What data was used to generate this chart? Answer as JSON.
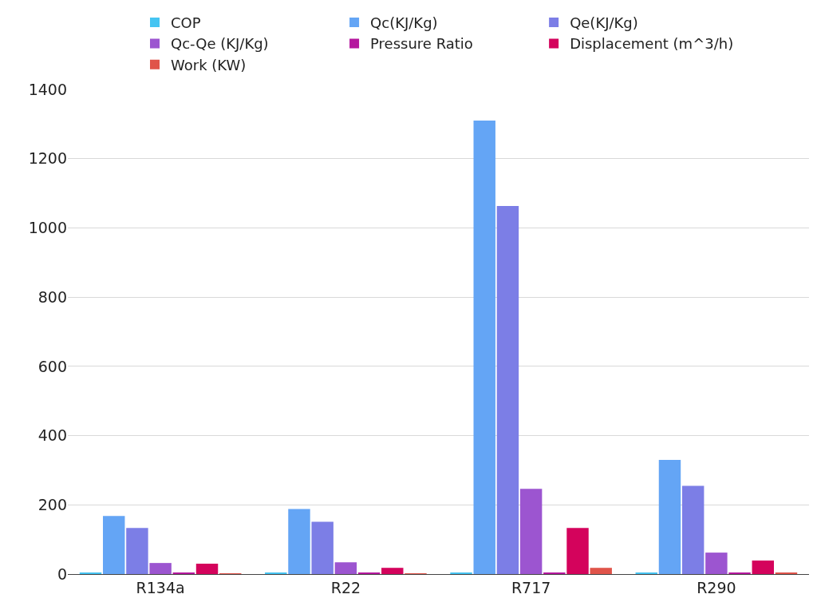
{
  "chart_data": {
    "type": "bar",
    "categories": [
      "R134a",
      "R22",
      "R717",
      "R290"
    ],
    "series": [
      {
        "name": "COP",
        "color": "#45c4f2",
        "values": [
          3,
          3,
          4,
          3
        ]
      },
      {
        "name": "Qc(KJ/Kg)",
        "color": "#64a5f5",
        "values": [
          168,
          188,
          1310,
          330
        ]
      },
      {
        "name": "Qe(KJ/Kg)",
        "color": "#7c7ee6",
        "values": [
          133,
          151,
          1063,
          255
        ]
      },
      {
        "name": "Qc-Qe (KJ/Kg)",
        "color": "#9c55d0",
        "values": [
          32,
          34,
          246,
          62
        ]
      },
      {
        "name": "Pressure Ratio",
        "color": "#b5179e",
        "values": [
          4,
          3,
          4,
          3
        ]
      },
      {
        "name": "Displacement (m^3/h)",
        "color": "#d4035c",
        "values": [
          30,
          18,
          133,
          39
        ]
      },
      {
        "name": "Work (KW)",
        "color": "#e0544a",
        "values": [
          1,
          2,
          18,
          4
        ]
      }
    ],
    "ylim": [
      0,
      1400
    ],
    "yticks": [
      0,
      200,
      400,
      600,
      800,
      1000,
      1200,
      1400
    ],
    "grid": "y",
    "legend": "top"
  }
}
